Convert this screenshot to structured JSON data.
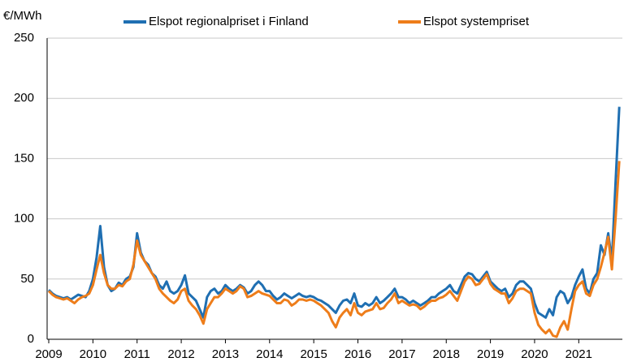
{
  "chart_data": {
    "type": "line",
    "y_label": "€/MWh",
    "categories": [
      "2009",
      null,
      null,
      null,
      null,
      null,
      null,
      null,
      null,
      null,
      null,
      null,
      "2010",
      null,
      null,
      null,
      null,
      null,
      null,
      null,
      null,
      null,
      null,
      null,
      "2011",
      null,
      null,
      null,
      null,
      null,
      null,
      null,
      null,
      null,
      null,
      null,
      "2012",
      null,
      null,
      null,
      null,
      null,
      null,
      null,
      null,
      null,
      null,
      null,
      "2013",
      null,
      null,
      null,
      null,
      null,
      null,
      null,
      null,
      null,
      null,
      null,
      "2014",
      null,
      null,
      null,
      null,
      null,
      null,
      null,
      null,
      null,
      null,
      null,
      "2015",
      null,
      null,
      null,
      null,
      null,
      null,
      null,
      null,
      null,
      null,
      null,
      "2016",
      null,
      null,
      null,
      null,
      null,
      null,
      null,
      null,
      null,
      null,
      null,
      "2017",
      null,
      null,
      null,
      null,
      null,
      null,
      null,
      null,
      null,
      null,
      null,
      "2018",
      null,
      null,
      null,
      null,
      null,
      null,
      null,
      null,
      null,
      null,
      null,
      "2019",
      null,
      null,
      null,
      null,
      null,
      null,
      null,
      null,
      null,
      null,
      null,
      "2020",
      null,
      null,
      null,
      null,
      null,
      null,
      null,
      null,
      null,
      null,
      null,
      "2021",
      null,
      null,
      null,
      null,
      null,
      null,
      null,
      null,
      null,
      null,
      null
    ],
    "series": [
      {
        "name": "Elspot regionalpriset i Finland",
        "color": "#1f6fb2",
        "values": [
          41,
          38,
          36,
          35,
          34,
          35,
          33,
          35,
          37,
          36,
          35,
          40,
          50,
          68,
          94,
          60,
          45,
          40,
          42,
          47,
          45,
          50,
          52,
          60,
          88,
          72,
          65,
          62,
          55,
          52,
          45,
          42,
          48,
          40,
          38,
          40,
          45,
          53,
          38,
          35,
          32,
          25,
          18,
          35,
          40,
          42,
          38,
          40,
          45,
          42,
          40,
          42,
          45,
          43,
          38,
          40,
          45,
          48,
          45,
          40,
          40,
          36,
          33,
          35,
          38,
          36,
          34,
          36,
          38,
          36,
          35,
          36,
          35,
          33,
          32,
          30,
          28,
          25,
          22,
          28,
          32,
          33,
          30,
          38,
          28,
          27,
          30,
          28,
          30,
          35,
          30,
          32,
          35,
          38,
          42,
          35,
          35,
          33,
          30,
          32,
          30,
          28,
          30,
          32,
          35,
          35,
          38,
          40,
          42,
          45,
          40,
          38,
          45,
          52,
          55,
          54,
          50,
          48,
          52,
          56,
          48,
          45,
          42,
          40,
          42,
          35,
          38,
          45,
          48,
          48,
          45,
          42,
          30,
          22,
          20,
          18,
          25,
          20,
          35,
          40,
          38,
          30,
          35,
          45,
          52,
          58,
          42,
          38,
          50,
          55,
          78,
          70,
          88,
          65,
          130,
          193
        ]
      },
      {
        "name": "Elspot systempriset",
        "color": "#ee7d1a",
        "values": [
          40,
          37,
          35,
          34,
          33,
          34,
          32,
          30,
          33,
          35,
          36,
          38,
          45,
          58,
          70,
          55,
          45,
          42,
          42,
          45,
          44,
          48,
          50,
          62,
          82,
          70,
          65,
          60,
          55,
          50,
          42,
          38,
          35,
          32,
          30,
          33,
          40,
          42,
          32,
          28,
          25,
          20,
          13,
          25,
          30,
          35,
          35,
          38,
          42,
          40,
          38,
          40,
          44,
          42,
          35,
          36,
          38,
          40,
          38,
          37,
          36,
          33,
          30,
          30,
          33,
          32,
          28,
          30,
          33,
          33,
          32,
          33,
          32,
          30,
          28,
          25,
          22,
          15,
          10,
          18,
          22,
          25,
          20,
          30,
          22,
          20,
          23,
          24,
          25,
          30,
          25,
          26,
          30,
          33,
          38,
          30,
          32,
          30,
          28,
          29,
          28,
          25,
          27,
          30,
          32,
          32,
          34,
          35,
          37,
          40,
          36,
          32,
          40,
          48,
          52,
          50,
          45,
          46,
          50,
          54,
          46,
          42,
          40,
          38,
          38,
          30,
          34,
          40,
          42,
          42,
          40,
          38,
          22,
          12,
          8,
          5,
          8,
          3,
          2,
          10,
          15,
          8,
          25,
          40,
          45,
          48,
          38,
          36,
          45,
          50,
          60,
          72,
          85,
          58,
          100,
          148
        ]
      }
    ],
    "ylim": [
      0,
      250
    ],
    "yticks": [
      0,
      50,
      100,
      150,
      200,
      250
    ],
    "grid": true
  }
}
